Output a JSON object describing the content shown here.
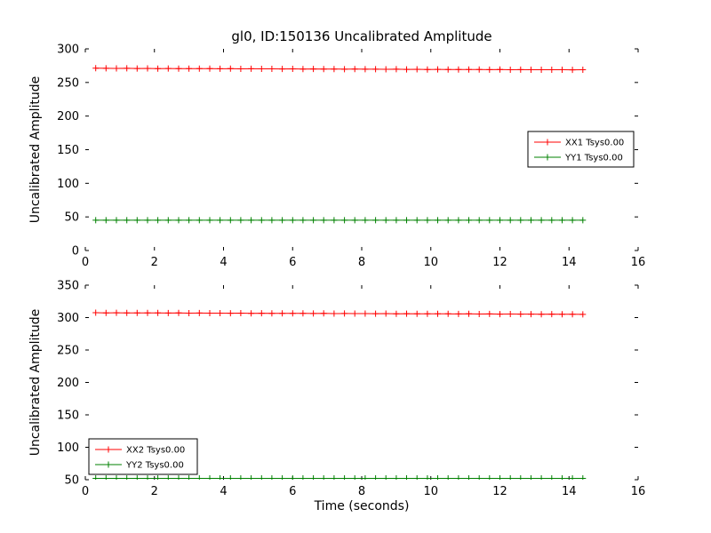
{
  "figure": {
    "title": "gl0, ID:150136 Uncalibrated Amplitude",
    "background": "#ffffff",
    "axis_color": "#000000"
  },
  "chart_data": [
    {
      "type": "line",
      "title": "",
      "xlabel": "",
      "ylabel": "Uncalibrated Amplitude",
      "xlim": [
        0,
        16
      ],
      "ylim": [
        0,
        300
      ],
      "xticks": [
        0,
        2,
        4,
        6,
        8,
        10,
        12,
        14,
        16
      ],
      "yticks": [
        0,
        50,
        100,
        150,
        200,
        250,
        300
      ],
      "grid": false,
      "legend_position": "center-right",
      "series": [
        {
          "name": "XX1 Tsys0.00",
          "color": "#ff0000",
          "marker": "plus",
          "x": [
            0.3,
            0.6,
            0.9,
            1.2,
            1.5,
            1.8,
            2.1,
            2.4,
            2.7,
            3.0,
            3.3,
            3.6,
            3.9,
            4.2,
            4.5,
            4.8,
            5.1,
            5.4,
            5.7,
            6.0,
            6.3,
            6.6,
            6.9,
            7.2,
            7.5,
            7.8,
            8.1,
            8.4,
            8.7,
            9.0,
            9.3,
            9.6,
            9.9,
            10.2,
            10.5,
            10.8,
            11.1,
            11.4,
            11.7,
            12.0,
            12.3,
            12.6,
            12.9,
            13.2,
            13.5,
            13.8,
            14.1,
            14.4
          ],
          "values": [
            271.2,
            271.0,
            270.9,
            271.0,
            270.8,
            270.9,
            270.7,
            270.8,
            270.6,
            270.7,
            270.5,
            270.6,
            270.4,
            270.5,
            270.3,
            270.4,
            270.2,
            270.3,
            270.1,
            270.2,
            270.0,
            270.1,
            269.9,
            270.0,
            269.8,
            269.9,
            269.7,
            269.8,
            269.6,
            269.7,
            269.5,
            269.6,
            269.4,
            269.5,
            269.3,
            269.4,
            269.2,
            269.3,
            269.1,
            269.2,
            269.0,
            269.1,
            268.9,
            269.0,
            268.9,
            269.0,
            268.8,
            268.9
          ]
        },
        {
          "name": "YY1 Tsys0.00",
          "color": "#008000",
          "marker": "plus",
          "x": [
            0.3,
            0.6,
            0.9,
            1.2,
            1.5,
            1.8,
            2.1,
            2.4,
            2.7,
            3.0,
            3.3,
            3.6,
            3.9,
            4.2,
            4.5,
            4.8,
            5.1,
            5.4,
            5.7,
            6.0,
            6.3,
            6.6,
            6.9,
            7.2,
            7.5,
            7.8,
            8.1,
            8.4,
            8.7,
            9.0,
            9.3,
            9.6,
            9.9,
            10.2,
            10.5,
            10.8,
            11.1,
            11.4,
            11.7,
            12.0,
            12.3,
            12.6,
            12.9,
            13.2,
            13.5,
            13.8,
            14.1,
            14.4
          ],
          "values": [
            45,
            45,
            45,
            45,
            45,
            45,
            45,
            45,
            45,
            45,
            45,
            45,
            45,
            45,
            45,
            45,
            45,
            45,
            45,
            45,
            45,
            45,
            45,
            45,
            45,
            45,
            45,
            45,
            45,
            45,
            45,
            45,
            45,
            45,
            45,
            45,
            45,
            45,
            45,
            45,
            45,
            45,
            45,
            45,
            45,
            45,
            45,
            45
          ]
        }
      ]
    },
    {
      "type": "line",
      "title": "",
      "xlabel": "Time (seconds)",
      "ylabel": "Uncalibrated Amplitude",
      "xlim": [
        0,
        16
      ],
      "ylim": [
        50,
        350
      ],
      "xticks": [
        0,
        2,
        4,
        6,
        8,
        10,
        12,
        14,
        16
      ],
      "yticks": [
        50,
        100,
        150,
        200,
        250,
        300,
        350
      ],
      "grid": false,
      "legend_position": "lower-left",
      "series": [
        {
          "name": "XX2 Tsys0.00",
          "color": "#ff0000",
          "marker": "plus",
          "x": [
            0.3,
            0.6,
            0.9,
            1.2,
            1.5,
            1.8,
            2.1,
            2.4,
            2.7,
            3.0,
            3.3,
            3.6,
            3.9,
            4.2,
            4.5,
            4.8,
            5.1,
            5.4,
            5.7,
            6.0,
            6.3,
            6.6,
            6.9,
            7.2,
            7.5,
            7.8,
            8.1,
            8.4,
            8.7,
            9.0,
            9.3,
            9.6,
            9.9,
            10.2,
            10.5,
            10.8,
            11.1,
            11.4,
            11.7,
            12.0,
            12.3,
            12.6,
            12.9,
            13.2,
            13.5,
            13.8,
            14.1,
            14.4
          ],
          "values": [
            307.5,
            307.3,
            307.4,
            307.2,
            307.3,
            307.1,
            307.2,
            307.0,
            307.1,
            306.9,
            307.0,
            306.8,
            306.9,
            306.7,
            306.8,
            306.6,
            306.7,
            306.5,
            306.6,
            306.4,
            306.5,
            306.3,
            306.4,
            306.2,
            306.3,
            306.1,
            306.2,
            306.0,
            306.1,
            305.9,
            306.0,
            305.8,
            305.9,
            305.7,
            305.8,
            305.6,
            305.7,
            305.5,
            305.6,
            305.4,
            305.5,
            305.3,
            305.4,
            305.2,
            305.3,
            305.1,
            305.2,
            305.0
          ]
        },
        {
          "name": "YY2 Tsys0.00",
          "color": "#008000",
          "marker": "plus",
          "x": [
            0.3,
            0.6,
            0.9,
            1.2,
            1.5,
            1.8,
            2.1,
            2.4,
            2.7,
            3.0,
            3.3,
            3.6,
            3.9,
            4.2,
            4.5,
            4.8,
            5.1,
            5.4,
            5.7,
            6.0,
            6.3,
            6.6,
            6.9,
            7.2,
            7.5,
            7.8,
            8.1,
            8.4,
            8.7,
            9.0,
            9.3,
            9.6,
            9.9,
            10.2,
            10.5,
            10.8,
            11.1,
            11.4,
            11.7,
            12.0,
            12.3,
            12.6,
            12.9,
            13.2,
            13.5,
            13.8,
            14.1,
            14.4
          ],
          "values": [
            52,
            52,
            52,
            52,
            52,
            52,
            52,
            52,
            52,
            52,
            52,
            52,
            52,
            52,
            52,
            52,
            52,
            52,
            52,
            52,
            52,
            52,
            52,
            52,
            52,
            52,
            52,
            52,
            52,
            52,
            52,
            52,
            52,
            52,
            52,
            52,
            52,
            52,
            52,
            52,
            52,
            52,
            52,
            52,
            52,
            52,
            52,
            52
          ]
        }
      ]
    }
  ]
}
